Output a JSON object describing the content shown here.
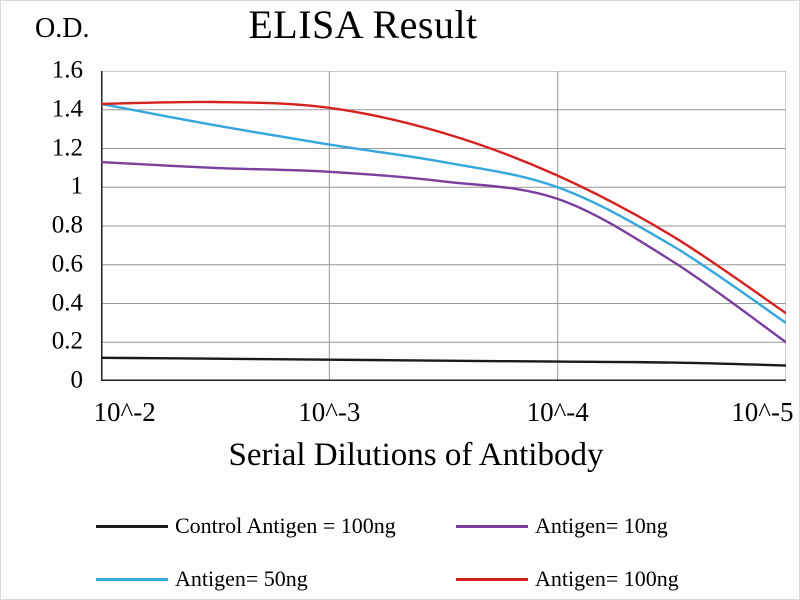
{
  "chart_data": {
    "type": "line",
    "title": "ELISA Result",
    "ylabel": "O.D.",
    "xlabel": "Serial Dilutions of Antibody",
    "x_ticks": [
      "10^-2",
      "10^-3",
      "10^-4",
      "10^-5"
    ],
    "y_ticks": [
      "0",
      "0.2",
      "0.4",
      "0.6",
      "0.8",
      "1",
      "1.2",
      "1.4",
      "1.6"
    ],
    "ylim": [
      0,
      1.6
    ],
    "grid": true,
    "grid_color": "#9a9a9a",
    "axis_color": "#222222",
    "x_unit": "tick-index",
    "legend_position": "bottom",
    "series": [
      {
        "id": "control-antigen-100ng",
        "name": "Control Antigen = 100ng",
        "color": "#1a1a1a",
        "x": [
          0,
          0.5,
          1,
          1.5,
          2,
          2.5,
          3
        ],
        "y": [
          0.12,
          0.115,
          0.11,
          0.105,
          0.1,
          0.095,
          0.08
        ]
      },
      {
        "id": "antigen-10ng",
        "name": "Antigen= 10ng",
        "color": "#7b3f9d",
        "x": [
          0,
          0.5,
          1,
          1.5,
          2,
          2.5,
          3
        ],
        "y": [
          1.13,
          1.1,
          1.08,
          1.03,
          0.94,
          0.62,
          0.2
        ]
      },
      {
        "id": "antigen-50ng",
        "name": "Antigen= 50ng",
        "color": "#35a7dd",
        "x": [
          0,
          0.5,
          1,
          1.5,
          2,
          2.5,
          3
        ],
        "y": [
          1.43,
          1.32,
          1.22,
          1.13,
          1.0,
          0.7,
          0.3
        ]
      },
      {
        "id": "antigen-100ng",
        "name": "Antigen= 100ng",
        "color": "#d42220",
        "x": [
          0,
          0.5,
          1,
          1.5,
          2,
          2.5,
          3
        ],
        "y": [
          1.43,
          1.44,
          1.41,
          1.28,
          1.06,
          0.75,
          0.35
        ]
      }
    ]
  }
}
